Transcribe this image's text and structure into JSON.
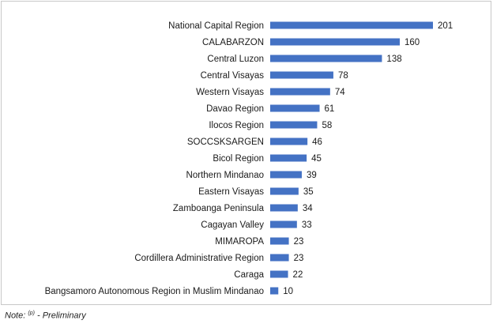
{
  "chart_data": {
    "type": "bar",
    "orientation": "horizontal",
    "categories": [
      "National Capital Region",
      "CALABARZON",
      "Central Luzon",
      "Central Visayas",
      "Western Visayas",
      "Davao Region",
      "Ilocos Region",
      "SOCCSKSARGEN",
      "Bicol Region",
      "Northern Mindanao",
      "Eastern Visayas",
      "Zamboanga Peninsula",
      "Cagayan Valley",
      "MIMAROPA",
      "Cordillera Administrative Region",
      "Caraga",
      "Bangsamoro Autonomous Region in Muslim Mindanao"
    ],
    "values": [
      201,
      160,
      138,
      78,
      74,
      61,
      58,
      46,
      45,
      39,
      35,
      34,
      33,
      23,
      23,
      22,
      10
    ],
    "color": "#4472c4"
  },
  "note": {
    "prefix": "Note:",
    "superscript": "(p)",
    "suffix": "- Preliminary"
  }
}
